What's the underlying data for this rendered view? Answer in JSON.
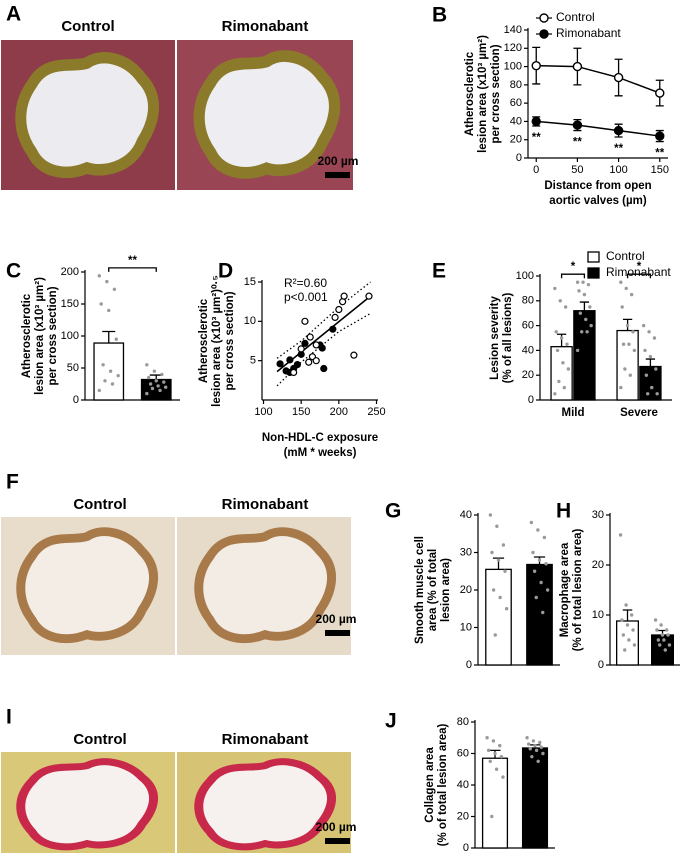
{
  "images": [
    {
      "letter": "A",
      "labels": [
        "Control",
        "Rimonabant"
      ],
      "scale_bar": "200 µm"
    },
    {
      "letter": "F",
      "labels": [
        "Control",
        "Rimonabant"
      ],
      "scale_bar": "200 µm"
    },
    {
      "letter": "I",
      "labels": [
        "Control",
        "Rimonabant"
      ],
      "scale_bar": "200 µm"
    }
  ],
  "chart_data": [
    {
      "type": "line",
      "panel": "B",
      "legend": "upper right",
      "y_label": [
        "Atherosclerotic",
        "lesion area (x10³ µm²)",
        "per cross section)"
      ],
      "x_label": [
        "Distance from open",
        "aortic valves (µm)"
      ],
      "x": [
        0,
        50,
        100,
        150
      ],
      "xlim": [
        -10,
        160
      ],
      "xticks": [
        0,
        50,
        100,
        150
      ],
      "ylim": [
        0,
        140
      ],
      "yticks": [
        0,
        20,
        40,
        60,
        80,
        100,
        120,
        140
      ],
      "series": [
        {
          "name": "Control",
          "color": "#ffffff",
          "values": [
            101,
            100,
            88,
            71
          ],
          "errors": [
            20,
            20,
            20,
            14
          ]
        },
        {
          "name": "Rimonabant",
          "color": "#000000",
          "values": [
            40,
            36,
            30,
            24
          ],
          "errors": [
            5,
            6,
            7,
            6
          ],
          "significance": [
            "**",
            "**",
            "**",
            "**"
          ]
        }
      ]
    },
    {
      "type": "bar",
      "panel": "C",
      "y_label": [
        "Atherosclerotic",
        "lesion area (x10³ µm²)",
        "per cross section)"
      ],
      "categories": [
        null,
        null
      ],
      "values": [
        89,
        32
      ],
      "errors": [
        18,
        7
      ],
      "colors": [
        "#ffffff",
        "#000000"
      ],
      "points": [
        [
          194,
          185,
          173,
          150,
          140,
          95,
          55,
          45,
          38,
          30,
          25,
          15
        ],
        [
          55,
          45,
          40,
          35,
          30,
          28,
          25,
          22,
          20,
          18,
          15,
          10
        ]
      ],
      "significance": "**",
      "ylim": [
        0,
        200
      ],
      "yticks": [
        0,
        50,
        100,
        150,
        200
      ]
    },
    {
      "type": "scatter",
      "panel": "D",
      "y_label": [
        "Atherosclerotic",
        "lesion area (x10³ µm²)⁰·⁵",
        "per cross section)"
      ],
      "x_label": [
        "Non-HDL-C exposure",
        "(mM * weeks)"
      ],
      "annotations": [
        "R²=0.60",
        "p<0.001"
      ],
      "xlim": [
        98,
        252
      ],
      "xticks": [
        100,
        150,
        200,
        250
      ],
      "ylim": [
        0,
        15
      ],
      "yticks": [
        5,
        10,
        15
      ],
      "series": [
        {
          "color": "#000000",
          "x": [
            122,
            130,
            135,
            140,
            145,
            150,
            155,
            175,
            178,
            180,
            192,
            135
          ],
          "values": [
            4.6,
            3.7,
            5.1,
            4.0,
            4.5,
            5.8,
            7.2,
            7.0,
            6.6,
            4.0,
            9.0,
            3.5
          ]
        },
        {
          "color": "#ffffff",
          "x": [
            140,
            150,
            155,
            160,
            165,
            170,
            170,
            195,
            200,
            205,
            207,
            220,
            240,
            162
          ],
          "values": [
            3.5,
            6.5,
            10.0,
            4.8,
            5.5,
            5.0,
            7.0,
            10.5,
            11.5,
            12.5,
            13.2,
            5.7,
            13.2,
            8.0
          ]
        }
      ],
      "fit": {
        "x": [
          118,
          242
        ],
        "y": [
          3.6,
          13.2
        ]
      },
      "band_upper": {
        "x": [
          118,
          150,
          200,
          242
        ],
        "y": [
          5.3,
          7.5,
          11.8,
          15
        ]
      },
      "band_lower": {
        "x": [
          118,
          150,
          200,
          242
        ],
        "y": [
          1.8,
          4.8,
          8.7,
          11
        ]
      }
    },
    {
      "type": "bar",
      "panel": "E",
      "legend": "upper right",
      "y_label": [
        "Lesion severity",
        "(% of all lesions)"
      ],
      "categories": [
        "Mild",
        "Severe"
      ],
      "significance": [
        "*",
        "*"
      ],
      "ylim": [
        0,
        100
      ],
      "yticks": [
        0,
        20,
        40,
        60,
        80,
        100
      ],
      "series": [
        {
          "name": "Control",
          "color": "#ffffff",
          "values": [
            43,
            56
          ],
          "errors": [
            10,
            9
          ],
          "points": [
            [
              90,
              80,
              75,
              55,
              50,
              45,
              40,
              30,
              25,
              15,
              10,
              5
            ],
            [
              95,
              90,
              85,
              75,
              60,
              55,
              45,
              45,
              40,
              25,
              20,
              10
            ]
          ]
        },
        {
          "name": "Rimonabant",
          "color": "#000000",
          "values": [
            72,
            27
          ],
          "errors": [
            7,
            6
          ],
          "points": [
            [
              95,
              95,
              93,
              88,
              85,
              75,
              70,
              65,
              60,
              55,
              55,
              40
            ],
            [
              60,
              55,
              50,
              40,
              35,
              25,
              20,
              10,
              5,
              5
            ]
          ]
        }
      ]
    },
    {
      "type": "bar",
      "panel": "G",
      "y_label": [
        "Smooth muscle cell",
        "area (% of total",
        "lesion area)"
      ],
      "categories": [
        null,
        null
      ],
      "values": [
        25.5,
        26.8
      ],
      "errors": [
        3,
        2
      ],
      "colors": [
        "#ffffff",
        "#000000"
      ],
      "points": [
        [
          40,
          37,
          32,
          30,
          28,
          25,
          20,
          18,
          15,
          8
        ],
        [
          38,
          36,
          34,
          30,
          28,
          27,
          25,
          22,
          20,
          18,
          14
        ]
      ],
      "ylim": [
        0,
        40
      ],
      "yticks": [
        0,
        10,
        20,
        30,
        40
      ]
    },
    {
      "type": "bar",
      "panel": "H",
      "y_label": [
        "Macrophage area",
        "(% of total lesion area)"
      ],
      "categories": [
        null,
        null
      ],
      "values": [
        8.8,
        6.0
      ],
      "errors": [
        2.2,
        0.9
      ],
      "colors": [
        "#ffffff",
        "#000000"
      ],
      "points": [
        [
          26,
          12,
          10,
          9,
          8,
          7,
          6,
          5,
          4,
          3
        ],
        [
          9,
          8,
          7,
          7,
          6,
          6,
          5,
          5,
          4,
          4,
          3
        ]
      ],
      "ylim": [
        0,
        30
      ],
      "yticks": [
        0,
        10,
        20,
        30
      ]
    },
    {
      "type": "bar",
      "panel": "J",
      "y_label": [
        "Collagen area",
        "(% of total lesion area)"
      ],
      "categories": [
        null,
        null
      ],
      "values": [
        57,
        63.5
      ],
      "errors": [
        5,
        2
      ],
      "colors": [
        "#ffffff",
        "#000000"
      ],
      "points": [
        [
          70,
          68,
          65,
          62,
          60,
          58,
          55,
          50,
          45,
          20
        ],
        [
          70,
          68,
          67,
          66,
          65,
          64,
          63,
          62,
          60,
          58,
          55
        ]
      ],
      "ylim": [
        0,
        80
      ],
      "yticks": [
        0,
        20,
        40,
        60,
        80
      ]
    }
  ]
}
